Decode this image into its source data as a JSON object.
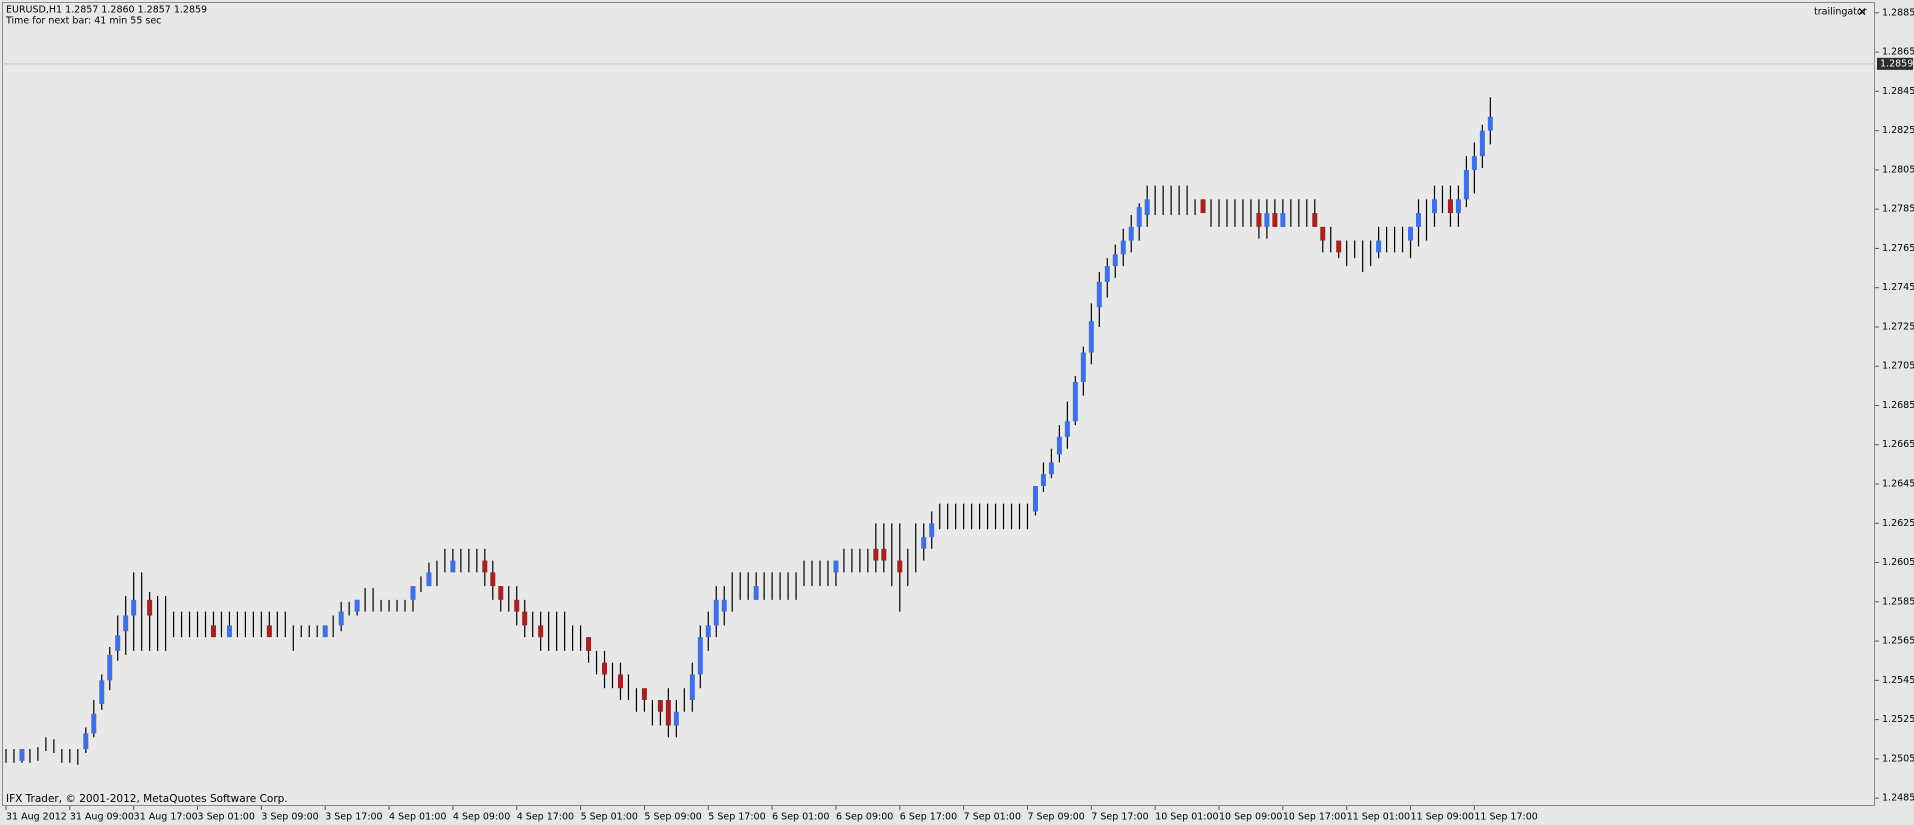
{
  "header": {
    "quote": "EURUSD,H1  1.2857 1.2860 1.2857 1.2859",
    "timer": "Time for next bar: 41 min 55 sec",
    "indicator": "trailingator",
    "close_icon": "×",
    "copyright": "IFX Trader, © 2001-2012, MetaQuotes Software Corp."
  },
  "chart_data": {
    "type": "candlestick",
    "high": [
      1.251,
      1.251,
      1.251,
      1.251,
      1.2511,
      1.2516,
      1.2515,
      1.251,
      1.251,
      1.251,
      1.2521,
      1.2535,
      1.2548,
      1.2562,
      1.2578,
      1.2588,
      1.26,
      1.26,
      1.259,
      1.2588,
      1.2588,
      1.258,
      1.258,
      1.258,
      1.258,
      1.258,
      1.258,
      1.258,
      1.258,
      1.258,
      1.258,
      1.258,
      1.258,
      1.258,
      1.258,
      1.258,
      1.2573,
      1.2573,
      1.2573,
      1.2573,
      1.2573,
      1.2578,
      1.2585,
      1.2585,
      1.2586,
      1.2592,
      1.2592,
      1.2586,
      1.2586,
      1.2586,
      1.2586,
      1.2593,
      1.2598,
      1.2605,
      1.2606,
      1.2612,
      1.2612,
      1.2612,
      1.2612,
      1.2612,
      1.2612,
      1.2606,
      1.2593,
      1.2593,
      1.2593,
      1.2586,
      1.258,
      1.258,
      1.258,
      1.258,
      1.258,
      1.2573,
      1.2573,
      1.2567,
      1.256,
      1.256,
      1.2554,
      1.2554,
      1.2548,
      1.2541,
      1.2541,
      1.2535,
      1.2535,
      1.2541,
      1.2535,
      1.2541,
      1.2554,
      1.2573,
      1.258,
      1.2593,
      1.2593,
      1.26,
      1.26,
      1.26,
      1.26,
      1.26,
      1.26,
      1.26,
      1.26,
      1.26,
      1.2606,
      1.2606,
      1.2606,
      1.2606,
      1.2606,
      1.2612,
      1.2612,
      1.2612,
      1.2612,
      1.2625,
      1.2625,
      1.2625,
      1.2625,
      1.2612,
      1.2625,
      1.2625,
      1.2631,
      1.2635,
      1.2635,
      1.2635,
      1.2635,
      1.2635,
      1.2635,
      1.2635,
      1.2635,
      1.2635,
      1.2635,
      1.2635,
      1.2635,
      1.2644,
      1.2656,
      1.2663,
      1.2675,
      1.2687,
      1.27,
      1.2715,
      1.2737,
      1.2753,
      1.276,
      1.2767,
      1.2775,
      1.2782,
      1.2788,
      1.2797,
      1.2797,
      1.2797,
      1.2797,
      1.2797,
      1.2797,
      1.279,
      1.279,
      1.279,
      1.279,
      1.279,
      1.279,
      1.279,
      1.279,
      1.279,
      1.279,
      1.279,
      1.279,
      1.279,
      1.279,
      1.279,
      1.279,
      1.2776,
      1.2776,
      1.2769,
      1.2769,
      1.2769,
      1.2769,
      1.2769,
      1.2776,
      1.2776,
      1.2776,
      1.2776,
      1.2776,
      1.279,
      1.279,
      1.2797,
      1.2797,
      1.2797,
      1.2797,
      1.2812,
      1.2819,
      1.2828,
      1.2842
    ],
    "low": [
      1.2503,
      1.2503,
      1.2503,
      1.2503,
      1.2504,
      1.2509,
      1.2508,
      1.2503,
      1.2503,
      1.2502,
      1.2508,
      1.2516,
      1.253,
      1.254,
      1.2555,
      1.2558,
      1.256,
      1.256,
      1.256,
      1.256,
      1.256,
      1.2567,
      1.2567,
      1.2567,
      1.2567,
      1.2567,
      1.2567,
      1.2567,
      1.2567,
      1.2567,
      1.2567,
      1.2567,
      1.2567,
      1.2567,
      1.2567,
      1.2567,
      1.256,
      1.2567,
      1.2567,
      1.2567,
      1.2567,
      1.2567,
      1.257,
      1.2578,
      1.2578,
      1.258,
      1.258,
      1.258,
      1.258,
      1.258,
      1.258,
      1.258,
      1.259,
      1.2593,
      1.2593,
      1.26,
      1.26,
      1.26,
      1.26,
      1.26,
      1.2593,
      1.2586,
      1.258,
      1.258,
      1.2573,
      1.2567,
      1.2567,
      1.256,
      1.256,
      1.256,
      1.256,
      1.256,
      1.256,
      1.2554,
      1.2548,
      1.2541,
      1.2541,
      1.2535,
      1.2535,
      1.2529,
      1.2529,
      1.2522,
      1.2522,
      1.2516,
      1.2516,
      1.2529,
      1.2529,
      1.2541,
      1.256,
      1.2567,
      1.2573,
      1.258,
      1.2586,
      1.2586,
      1.2586,
      1.2586,
      1.2586,
      1.2586,
      1.2586,
      1.2586,
      1.2593,
      1.2593,
      1.2593,
      1.2593,
      1.2593,
      1.26,
      1.26,
      1.26,
      1.26,
      1.26,
      1.26,
      1.2593,
      1.258,
      1.2593,
      1.26,
      1.2606,
      1.2612,
      1.2622,
      1.2622,
      1.2622,
      1.2622,
      1.2622,
      1.2622,
      1.2622,
      1.2622,
      1.2622,
      1.2622,
      1.2622,
      1.2622,
      1.2629,
      1.2641,
      1.2648,
      1.2656,
      1.2663,
      1.2675,
      1.269,
      1.2706,
      1.2725,
      1.274,
      1.275,
      1.2756,
      1.2763,
      1.2769,
      1.2776,
      1.2782,
      1.2782,
      1.2782,
      1.2782,
      1.2782,
      1.2782,
      1.2783,
      1.2776,
      1.2776,
      1.2776,
      1.2776,
      1.2776,
      1.2776,
      1.277,
      1.277,
      1.2776,
      1.2776,
      1.2776,
      1.2776,
      1.2776,
      1.2776,
      1.2763,
      1.2763,
      1.276,
      1.2756,
      1.276,
      1.2753,
      1.2756,
      1.276,
      1.2763,
      1.2763,
      1.2763,
      1.276,
      1.2766,
      1.2769,
      1.2776,
      1.2783,
      1.2776,
      1.2776,
      1.2786,
      1.2793,
      1.2806,
      1.2818
    ],
    "open": [
      null,
      null,
      1.2504,
      null,
      null,
      null,
      null,
      null,
      null,
      null,
      1.251,
      1.2518,
      1.2533,
      1.2545,
      1.256,
      1.257,
      1.2578,
      null,
      1.2586,
      null,
      null,
      null,
      null,
      null,
      null,
      null,
      1.2573,
      null,
      1.2567,
      null,
      null,
      null,
      null,
      1.2573,
      null,
      null,
      null,
      null,
      null,
      null,
      1.2567,
      null,
      1.2573,
      null,
      1.258,
      null,
      null,
      null,
      null,
      null,
      null,
      1.2586,
      null,
      1.2593,
      null,
      null,
      1.26,
      null,
      null,
      null,
      1.2606,
      1.26,
      1.2593,
      null,
      1.2586,
      1.258,
      null,
      1.2573,
      null,
      null,
      null,
      null,
      null,
      1.2567,
      null,
      1.2554,
      null,
      1.2548,
      null,
      null,
      1.2541,
      null,
      1.2535,
      1.2535,
      1.2522,
      null,
      1.2535,
      1.2548,
      1.2567,
      1.2573,
      1.258,
      null,
      null,
      null,
      1.2586,
      null,
      null,
      null,
      null,
      null,
      null,
      null,
      null,
      null,
      1.26,
      null,
      null,
      null,
      null,
      1.2612,
      1.2612,
      null,
      1.2606,
      null,
      null,
      1.2612,
      1.2618,
      null,
      null,
      null,
      null,
      null,
      null,
      null,
      null,
      null,
      null,
      null,
      null,
      1.2631,
      1.2644,
      1.265,
      1.266,
      1.2669,
      1.2677,
      1.2697,
      1.2712,
      1.2735,
      1.2748,
      1.2756,
      1.2762,
      1.2769,
      1.2776,
      1.2782,
      null,
      null,
      null,
      null,
      null,
      null,
      1.279,
      null,
      null,
      null,
      null,
      null,
      null,
      1.2783,
      1.2776,
      1.2783,
      1.2776,
      null,
      null,
      null,
      1.2783,
      1.2776,
      null,
      1.2769,
      null,
      null,
      null,
      null,
      1.2763,
      null,
      null,
      null,
      1.2769,
      1.2776,
      null,
      1.2783,
      null,
      1.279,
      1.2783,
      1.279,
      1.2805,
      1.2812,
      1.2825
    ],
    "close": [
      null,
      null,
      1.251,
      null,
      null,
      null,
      null,
      null,
      null,
      null,
      1.2518,
      1.2528,
      1.2545,
      1.2558,
      1.2568,
      1.2578,
      1.2586,
      null,
      1.2578,
      null,
      null,
      null,
      null,
      null,
      null,
      null,
      1.2567,
      null,
      1.2573,
      null,
      null,
      null,
      null,
      1.2567,
      null,
      null,
      null,
      null,
      null,
      null,
      1.2573,
      null,
      1.258,
      null,
      1.2586,
      null,
      null,
      null,
      null,
      null,
      null,
      1.2593,
      null,
      1.26,
      null,
      null,
      1.2606,
      null,
      null,
      null,
      1.26,
      1.2593,
      1.2586,
      null,
      1.258,
      1.2573,
      null,
      1.2567,
      null,
      null,
      null,
      null,
      null,
      1.256,
      null,
      1.2548,
      null,
      1.2541,
      null,
      null,
      1.2535,
      null,
      1.2529,
      1.2522,
      1.2529,
      null,
      1.2548,
      1.2567,
      1.2573,
      1.2586,
      1.2586,
      null,
      null,
      null,
      1.2593,
      null,
      null,
      null,
      null,
      null,
      null,
      null,
      null,
      null,
      1.2606,
      null,
      null,
      null,
      null,
      1.2606,
      1.2606,
      null,
      1.26,
      null,
      null,
      1.2618,
      1.2625,
      null,
      null,
      null,
      null,
      null,
      null,
      null,
      null,
      null,
      null,
      null,
      null,
      1.2644,
      1.265,
      1.2656,
      1.2669,
      1.2677,
      1.2697,
      1.2712,
      1.2728,
      1.2748,
      1.2756,
      1.2762,
      1.2769,
      1.2776,
      1.2786,
      1.279,
      null,
      null,
      null,
      null,
      null,
      null,
      1.2783,
      null,
      null,
      null,
      null,
      null,
      null,
      1.2776,
      1.2783,
      1.2776,
      1.2783,
      null,
      null,
      null,
      1.2776,
      1.2769,
      null,
      1.2763,
      null,
      null,
      null,
      null,
      1.2769,
      null,
      null,
      null,
      1.2776,
      1.2783,
      null,
      1.279,
      null,
      1.2783,
      1.279,
      1.2805,
      1.2812,
      1.2825,
      1.2832
    ],
    "colors": {
      "up": "#3f6fe2",
      "down": "#a32222",
      "wick": "#000000",
      "price_line": "#c4c4c4"
    },
    "current_price": 1.2859,
    "xlim": [
      -0.5,
      234.2
    ],
    "xticks": [
      {
        "value": 0,
        "label": "31 Aug 2012"
      },
      {
        "value": 8,
        "label": "31 Aug 09:00"
      },
      {
        "value": 16,
        "label": "31 Aug 17:00"
      },
      {
        "value": 24,
        "label": "3 Sep 01:00"
      },
      {
        "value": 32,
        "label": "3 Sep 09:00"
      },
      {
        "value": 40,
        "label": "3 Sep 17:00"
      },
      {
        "value": 48,
        "label": "4 Sep 01:00"
      },
      {
        "value": 56,
        "label": "4 Sep 09:00"
      },
      {
        "value": 64,
        "label": "4 Sep 17:00"
      },
      {
        "value": 72,
        "label": "5 Sep 01:00"
      },
      {
        "value": 80,
        "label": "5 Sep 09:00"
      },
      {
        "value": 88,
        "label": "5 Sep 17:00"
      },
      {
        "value": 96,
        "label": "6 Sep 01:00"
      },
      {
        "value": 104,
        "label": "6 Sep 09:00"
      },
      {
        "value": 112,
        "label": "6 Sep 17:00"
      },
      {
        "value": 120,
        "label": "7 Sep 01:00"
      },
      {
        "value": 128,
        "label": "7 Sep 09:00"
      },
      {
        "value": 136,
        "label": "7 Sep 17:00"
      },
      {
        "value": 144,
        "label": "10 Sep 01:00"
      },
      {
        "value": 152,
        "label": "10 Sep 09:00"
      },
      {
        "value": 160,
        "label": "10 Sep 17:00"
      },
      {
        "value": 168,
        "label": "11 Sep 01:00"
      },
      {
        "value": 176,
        "label": "11 Sep 09:00"
      },
      {
        "value": 184,
        "label": "11 Sep 17:00"
      }
    ],
    "ylim": [
      1.2481,
      1.289
    ],
    "yticks": [
      1.2485,
      1.2505,
      1.2525,
      1.2545,
      1.2565,
      1.2585,
      1.2605,
      1.2625,
      1.2645,
      1.2665,
      1.2685,
      1.2705,
      1.2725,
      1.2745,
      1.2765,
      1.2785,
      1.2805,
      1.2825,
      1.2845,
      1.2865,
      1.2885
    ],
    "grid": false
  }
}
